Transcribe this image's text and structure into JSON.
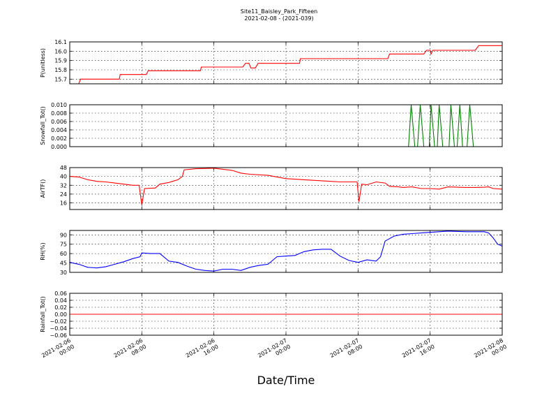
{
  "figure": {
    "title_line1": "Site11_Baisley_Park_Fifteen",
    "title_line2": "2021-02-08 - (2021-039)",
    "xlabel": "Date/Time"
  },
  "chart_data": {
    "type": "line",
    "x_ticks": [
      {
        "l1": "2021-02-06",
        "l2": "00:00",
        "t": 0
      },
      {
        "l1": "2021-02-06",
        "l2": "08:00",
        "t": 8
      },
      {
        "l1": "2021-02-06",
        "l2": "16:00",
        "t": 16
      },
      {
        "l1": "2021-02-07",
        "l2": "00:00",
        "t": 24
      },
      {
        "l1": "2021-02-07",
        "l2": "08:00",
        "t": 32
      },
      {
        "l1": "2021-02-07",
        "l2": "16:00",
        "t": 40
      },
      {
        "l1": "2021-02-08",
        "l2": "00:00",
        "t": 48
      }
    ],
    "xlim": [
      0,
      48
    ],
    "grid": true,
    "panels": [
      {
        "name": "P",
        "ylabel": "P(unitless)",
        "color": "#ff0000",
        "ylim": [
          15.65,
          16.1
        ],
        "yticks": [
          15.7,
          15.8,
          15.9,
          16.0,
          16.1
        ],
        "tick_labels": [
          "15.7",
          "15.8",
          "15.9",
          "16.0",
          "16.1"
        ],
        "points": [
          [
            0,
            15.65
          ],
          [
            1.0,
            15.65
          ],
          [
            1.2,
            15.7
          ],
          [
            5.5,
            15.7
          ],
          [
            5.6,
            15.75
          ],
          [
            8.5,
            15.75
          ],
          [
            8.7,
            15.79
          ],
          [
            14.5,
            15.79
          ],
          [
            14.6,
            15.83
          ],
          [
            19.2,
            15.83
          ],
          [
            19.5,
            15.87
          ],
          [
            19.9,
            15.87
          ],
          [
            20.1,
            15.82
          ],
          [
            20.6,
            15.82
          ],
          [
            20.9,
            15.87
          ],
          [
            25.5,
            15.87
          ],
          [
            25.6,
            15.92
          ],
          [
            35.3,
            15.92
          ],
          [
            35.5,
            15.97
          ],
          [
            39.3,
            15.97
          ],
          [
            39.6,
            16.01
          ],
          [
            40.0,
            16.01
          ],
          [
            40.1,
            15.97
          ],
          [
            40.3,
            16.01
          ],
          [
            45.0,
            16.01
          ],
          [
            45.4,
            16.06
          ],
          [
            48,
            16.06
          ]
        ]
      },
      {
        "name": "Snowfall",
        "ylabel": "Snowfall_Tot()",
        "color": "#008000",
        "ylim": [
          0,
          0.01
        ],
        "yticks": [
          0.0,
          0.002,
          0.004,
          0.006,
          0.008,
          0.01
        ],
        "tick_labels": [
          "0.000",
          "0.002",
          "0.004",
          "0.006",
          "0.008",
          "0.010"
        ],
        "points": [
          [
            0,
            0
          ],
          [
            37.6,
            0
          ],
          [
            37.9,
            0.01
          ],
          [
            38.3,
            0
          ],
          [
            38.6,
            0
          ],
          [
            38.9,
            0.01
          ],
          [
            39.3,
            0
          ],
          [
            39.9,
            0
          ],
          [
            40.1,
            0.01
          ],
          [
            40.5,
            0
          ],
          [
            40.8,
            0
          ],
          [
            41.0,
            0.01
          ],
          [
            41.4,
            0
          ],
          [
            42.1,
            0
          ],
          [
            42.3,
            0.01
          ],
          [
            42.7,
            0
          ],
          [
            43.0,
            0
          ],
          [
            43.3,
            0.01
          ],
          [
            43.6,
            0
          ],
          [
            44.1,
            0
          ],
          [
            44.4,
            0.01
          ],
          [
            44.8,
            0
          ],
          [
            48,
            0
          ]
        ]
      },
      {
        "name": "AirT",
        "ylabel": "AirTF()",
        "color": "#ff0000",
        "ylim": [
          10,
          48
        ],
        "yticks": [
          16,
          24,
          32,
          40,
          48
        ],
        "tick_labels": [
          "16",
          "24",
          "32",
          "40",
          "48"
        ],
        "points": [
          [
            0,
            40
          ],
          [
            1,
            39.5
          ],
          [
            2,
            37
          ],
          [
            3,
            35.5
          ],
          [
            4,
            35
          ],
          [
            5,
            34
          ],
          [
            6,
            33
          ],
          [
            7,
            32
          ],
          [
            7.7,
            32
          ],
          [
            8,
            14
          ],
          [
            8.3,
            29
          ],
          [
            9.5,
            29.5
          ],
          [
            10,
            33
          ],
          [
            11,
            34.5
          ],
          [
            12,
            37
          ],
          [
            12.5,
            40
          ],
          [
            12.7,
            46
          ],
          [
            14,
            47
          ],
          [
            15,
            47.2
          ],
          [
            16,
            47.5
          ],
          [
            17,
            46.5
          ],
          [
            18,
            45.5
          ],
          [
            19,
            43
          ],
          [
            20,
            42
          ],
          [
            22,
            41
          ],
          [
            23,
            39.5
          ],
          [
            24,
            38
          ],
          [
            25,
            37.5
          ],
          [
            26,
            37
          ],
          [
            27,
            36.5
          ],
          [
            29,
            35.5
          ],
          [
            30,
            35
          ],
          [
            31,
            35
          ],
          [
            31.9,
            35
          ],
          [
            32.1,
            17
          ],
          [
            32.4,
            33
          ],
          [
            33,
            32.5
          ],
          [
            34,
            35
          ],
          [
            35,
            34
          ],
          [
            35.5,
            31
          ],
          [
            36.5,
            30.5
          ],
          [
            37,
            30
          ],
          [
            38,
            30.5
          ],
          [
            39,
            29
          ],
          [
            40,
            29
          ],
          [
            41,
            28.5
          ],
          [
            42,
            30.5
          ],
          [
            43,
            30.2
          ],
          [
            44,
            30
          ],
          [
            45,
            30
          ],
          [
            46,
            30.2
          ],
          [
            46.5,
            30.5
          ],
          [
            47,
            29
          ],
          [
            48,
            28.5
          ]
        ]
      },
      {
        "name": "RH",
        "ylabel": "RH(%)",
        "color": "#0000ff",
        "ylim": [
          30,
          97
        ],
        "yticks": [
          30,
          45,
          60,
          75,
          90
        ],
        "tick_labels": [
          "30",
          "45",
          "60",
          "75",
          "90"
        ],
        "points": [
          [
            0,
            46
          ],
          [
            1,
            43
          ],
          [
            2,
            38
          ],
          [
            3,
            37
          ],
          [
            4,
            39
          ],
          [
            5,
            43
          ],
          [
            6,
            47
          ],
          [
            7,
            52
          ],
          [
            7.8,
            55
          ],
          [
            8,
            61
          ],
          [
            9,
            60
          ],
          [
            10,
            60
          ],
          [
            11,
            48
          ],
          [
            12,
            46
          ],
          [
            13,
            40
          ],
          [
            14,
            35
          ],
          [
            15,
            33
          ],
          [
            16,
            32
          ],
          [
            17,
            35
          ],
          [
            18,
            35
          ],
          [
            19,
            33
          ],
          [
            20,
            38
          ],
          [
            21,
            41
          ],
          [
            22,
            43
          ],
          [
            23,
            55
          ],
          [
            24,
            56
          ],
          [
            25,
            57
          ],
          [
            26,
            63
          ],
          [
            27,
            66
          ],
          [
            28,
            67
          ],
          [
            29,
            67
          ],
          [
            30,
            56
          ],
          [
            31,
            49
          ],
          [
            32,
            46
          ],
          [
            33,
            50
          ],
          [
            34,
            48
          ],
          [
            34.5,
            55
          ],
          [
            35,
            80
          ],
          [
            36,
            88
          ],
          [
            37,
            91
          ],
          [
            38,
            92
          ],
          [
            39,
            93
          ],
          [
            40,
            94
          ],
          [
            41,
            95
          ],
          [
            42,
            96
          ],
          [
            44,
            95
          ],
          [
            46,
            95
          ],
          [
            46.5,
            93
          ],
          [
            47,
            85
          ],
          [
            47.5,
            75
          ],
          [
            48,
            72
          ]
        ]
      },
      {
        "name": "Rainfall",
        "ylabel": "Rainfall_Tot()",
        "color": "#ff0000",
        "ylim": [
          -0.06,
          0.06
        ],
        "yticks": [
          -0.06,
          -0.04,
          -0.02,
          0.0,
          0.02,
          0.04,
          0.06
        ],
        "tick_labels": [
          "−0.06",
          "−0.04",
          "−0.02",
          "0.00",
          "0.02",
          "0.04",
          "0.06"
        ],
        "points": [
          [
            0,
            0
          ],
          [
            48,
            0
          ]
        ]
      }
    ]
  }
}
